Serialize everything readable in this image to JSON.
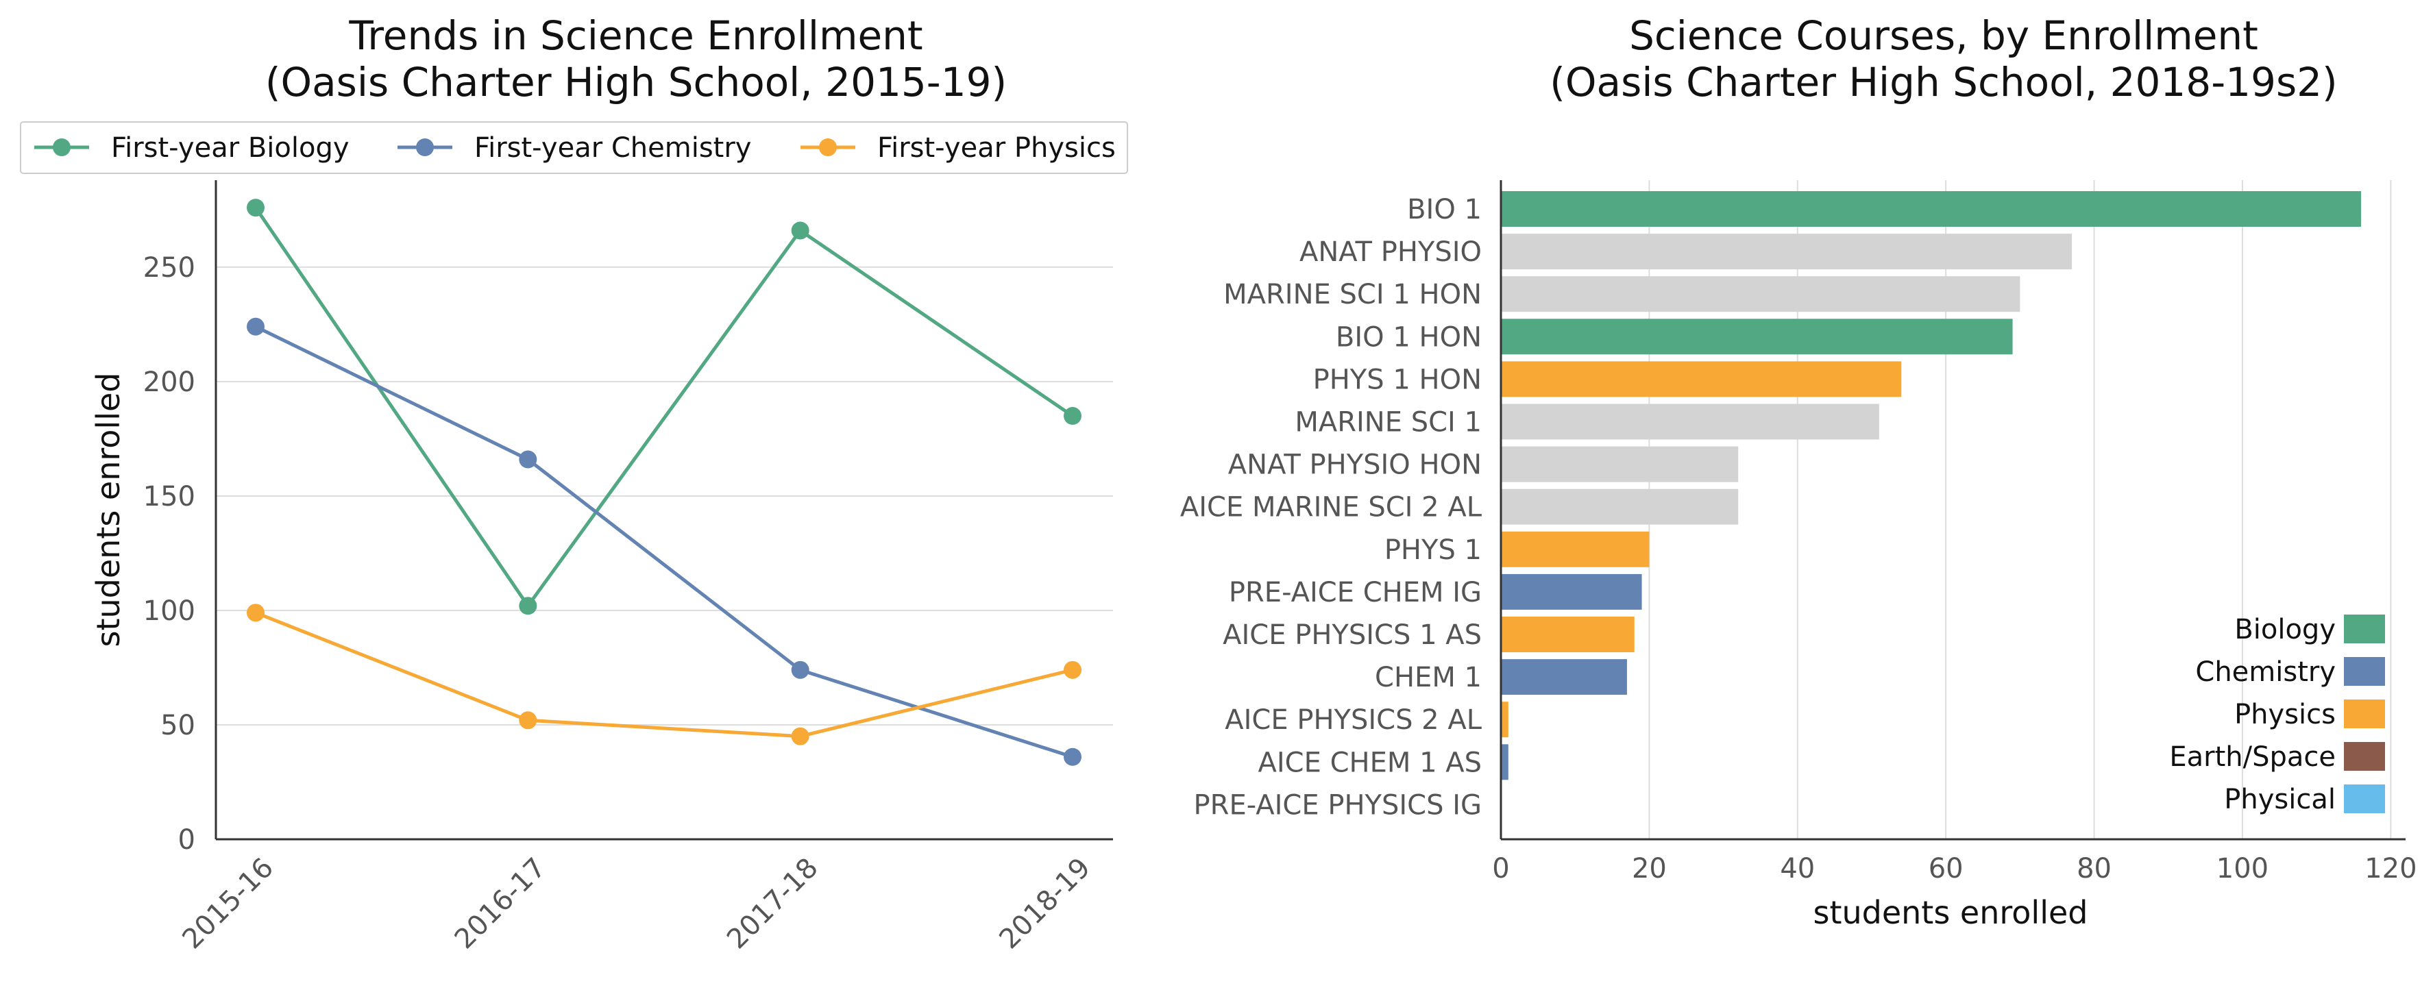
{
  "chart_data": [
    {
      "type": "line",
      "title": "Trends in Science Enrollment",
      "subtitle": "(Oasis Charter High School, 2015-19)",
      "xlabel": "",
      "ylabel": "students enrolled",
      "categories": [
        "2015-16",
        "2016-17",
        "2017-18",
        "2018-19"
      ],
      "series": [
        {
          "name": "First-year Biology",
          "color": "#52a882",
          "values": [
            276,
            102,
            266,
            185
          ]
        },
        {
          "name": "First-year Chemistry",
          "color": "#6383b3",
          "values": [
            224,
            166,
            74,
            36
          ]
        },
        {
          "name": "First-year Physics",
          "color": "#f8a834",
          "values": [
            99,
            52,
            45,
            74
          ]
        }
      ],
      "ylim": [
        0,
        288
      ],
      "yticks": [
        0,
        50,
        100,
        150,
        200,
        250
      ],
      "grid": "horizontal",
      "legend": "top"
    },
    {
      "type": "bar",
      "orientation": "horizontal",
      "title": "Science Courses, by Enrollment",
      "subtitle": "(Oasis Charter High School, 2018-19s2)",
      "xlabel": "students enrolled",
      "ylabel": "",
      "categories": [
        "BIO 1",
        "ANAT PHYSIO",
        "MARINE SCI 1 HON",
        "BIO 1 HON",
        "PHYS 1 HON",
        "MARINE SCI 1",
        "ANAT PHYSIO HON",
        "AICE MARINE SCI 2 AL",
        "PHYS 1",
        "PRE-AICE CHEM IG",
        "AICE PHYSICS 1 AS",
        "CHEM 1",
        "AICE PHYSICS 2 AL",
        "AICE CHEM 1 AS",
        "PRE-AICE PHYSICS IG"
      ],
      "values": [
        116,
        77,
        70,
        69,
        54,
        51,
        32,
        32,
        20,
        19,
        18,
        17,
        1,
        1,
        0
      ],
      "groups": [
        "Biology",
        "Other",
        "Other",
        "Biology",
        "Physics",
        "Other",
        "Other",
        "Other",
        "Physics",
        "Chemistry",
        "Physics",
        "Chemistry",
        "Physics",
        "Chemistry",
        "Physics"
      ],
      "xlim": [
        0,
        122
      ],
      "xticks": [
        0,
        20,
        40,
        60,
        80,
        100,
        120
      ],
      "grid": "vertical",
      "legend": "lower-right",
      "legend_entries": [
        {
          "name": "Biology",
          "color": "#52a882"
        },
        {
          "name": "Chemistry",
          "color": "#6383b3"
        },
        {
          "name": "Physics",
          "color": "#f8a834"
        },
        {
          "name": "Earth/Space",
          "color": "#8c5a4b"
        },
        {
          "name": "Physical",
          "color": "#66bdeb"
        }
      ],
      "other_color": "#d3d3d3"
    }
  ]
}
